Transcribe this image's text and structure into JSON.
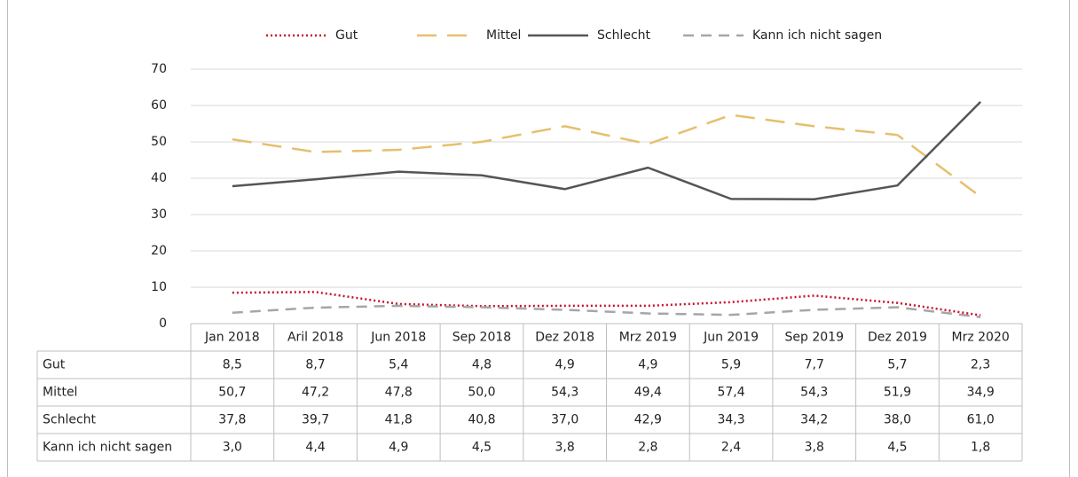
{
  "chart_data": {
    "type": "line",
    "categories": [
      "Jan 2018",
      "Aril 2018",
      "Jun 2018",
      "Sep 2018",
      "Dez 2018",
      "Mrz 2019",
      "Jun 2019",
      "Sep 2019",
      "Dez 2019",
      "Mrz 2020"
    ],
    "series": [
      {
        "name": "Gut",
        "color": "#c8102e",
        "values": [
          8.5,
          8.7,
          5.4,
          4.8,
          4.9,
          4.9,
          5.9,
          7.7,
          5.7,
          2.3
        ],
        "value_labels": [
          "8,5",
          "8,7",
          "5,4",
          "4,8",
          "4,9",
          "4,9",
          "5,9",
          "7,7",
          "5,7",
          "2,3"
        ]
      },
      {
        "name": "Mittel",
        "color": "#e6bf6e",
        "values": [
          50.7,
          47.2,
          47.8,
          50.0,
          54.3,
          49.4,
          57.4,
          54.3,
          51.9,
          34.9
        ],
        "value_labels": [
          "50,7",
          "47,2",
          "47,8",
          "50,0",
          "54,3",
          "49,4",
          "57,4",
          "54,3",
          "51,9",
          "34,9"
        ]
      },
      {
        "name": "Schlecht",
        "color": "#555555",
        "values": [
          37.8,
          39.7,
          41.8,
          40.8,
          37.0,
          42.9,
          34.3,
          34.2,
          38.0,
          61.0
        ],
        "value_labels": [
          "37,8",
          "39,7",
          "41,8",
          "40,8",
          "37,0",
          "42,9",
          "34,3",
          "34,2",
          "38,0",
          "61,0"
        ]
      },
      {
        "name": "Kann ich nicht sagen",
        "color": "#a6a6a6",
        "values": [
          3.0,
          4.4,
          4.9,
          4.5,
          3.8,
          2.8,
          2.4,
          3.8,
          4.5,
          1.8
        ],
        "value_labels": [
          "3,0",
          "4,4",
          "4,9",
          "4,5",
          "3,8",
          "2,8",
          "2,4",
          "3,8",
          "4,5",
          "1,8"
        ]
      }
    ],
    "ylim": [
      0,
      70
    ],
    "yticks": [
      0,
      10,
      20,
      30,
      40,
      50,
      60,
      70
    ],
    "grid": true
  }
}
